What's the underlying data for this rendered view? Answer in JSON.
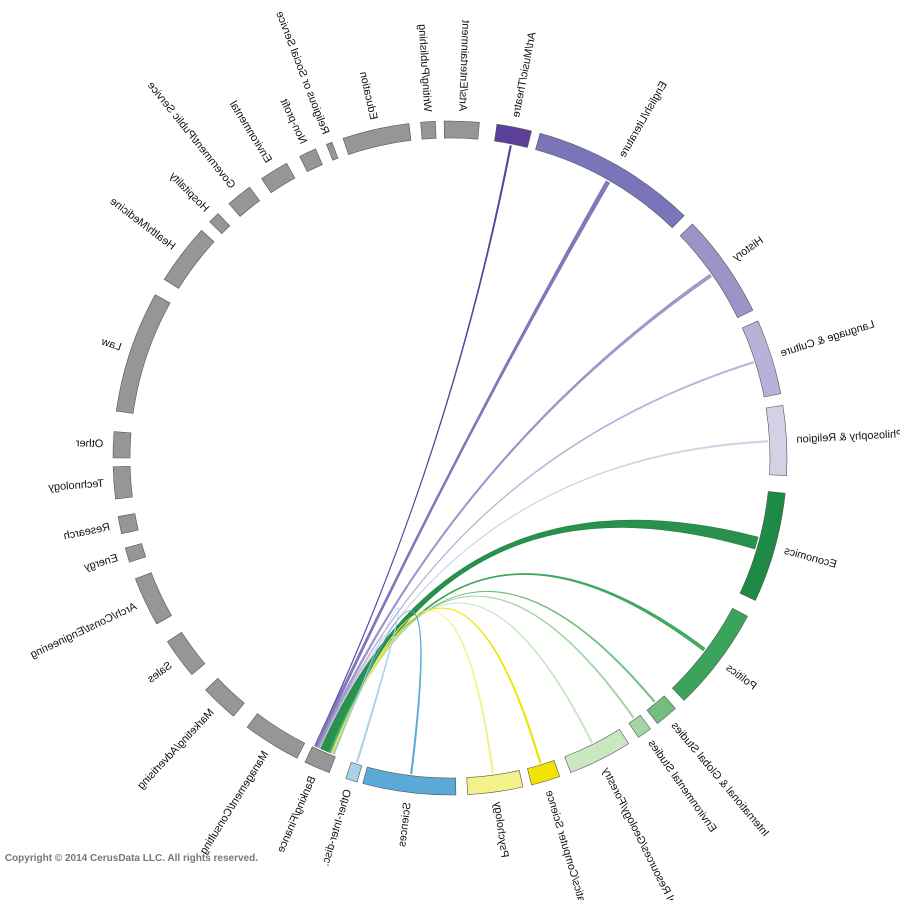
{
  "copyright": "Copyright © 2014 CerusData LLC.  All rights reserved.",
  "mirrored": true,
  "chart_data": {
    "type": "chord",
    "majors": [
      {
        "label": "Art/Music/Theatre",
        "color": "#5b3f98",
        "flow": 0.2
      },
      {
        "label": "English/Literature",
        "color": "#7a74b8",
        "flow": 1.3
      },
      {
        "label": "History",
        "color": "#9b94c7",
        "flow": 1.0
      },
      {
        "label": "Language & Culture",
        "color": "#b7b2d8",
        "flow": 0.4
      },
      {
        "label": "Philosophy & Religion",
        "color": "#d4d1e6",
        "flow": 0.3
      },
      {
        "label": "Economics",
        "color": "#1f8a45",
        "flow": 4.0
      },
      {
        "label": "Politics",
        "color": "#3aa55a",
        "flow": 1.0
      },
      {
        "label": "International & Global Studies",
        "color": "#72be7e",
        "flow": 0.3
      },
      {
        "label": "Environmental Studies",
        "color": "#a4d6a4",
        "flow": 0.2
      },
      {
        "label": "Natural Resources/Geology/Forestry",
        "color": "#c8e8c1",
        "flow": 0.2
      },
      {
        "label": "Mathematics/Computer Science",
        "color": "#f1e300",
        "flow": 0.5
      },
      {
        "label": "Psychology",
        "color": "#f4f08a",
        "flow": 0.3
      },
      {
        "label": "Sciences",
        "color": "#5aa9d6",
        "flow": 0.25
      },
      {
        "label": "Other-Inter-disc.",
        "color": "#a9d1ea",
        "flow": 0.15
      }
    ],
    "careers": [
      {
        "label": "Banking/Finance",
        "color": "#969696"
      },
      {
        "label": "Management/Consulting",
        "color": "#969696"
      },
      {
        "label": "Marketing/Advertising",
        "color": "#969696"
      },
      {
        "label": "Sales",
        "color": "#969696"
      },
      {
        "label": "Arch/Const/Engineering",
        "color": "#969696"
      },
      {
        "label": "Energy",
        "color": "#969696"
      },
      {
        "label": "Research",
        "color": "#969696"
      },
      {
        "label": "Technology",
        "color": "#969696"
      },
      {
        "label": "Other",
        "color": "#969696"
      },
      {
        "label": "Law",
        "color": "#969696"
      },
      {
        "label": "Health/Medicine",
        "color": "#969696"
      },
      {
        "label": "Hospitality",
        "color": "#969696"
      },
      {
        "label": "Government/Public Service",
        "color": "#969696"
      },
      {
        "label": "Environmental",
        "color": "#969696"
      },
      {
        "label": "Non-profit",
        "color": "#969696"
      },
      {
        "label": "Religious or Social Service",
        "color": "#969696"
      },
      {
        "label": "Education",
        "color": "#969696"
      },
      {
        "label": "Writing/Publishing",
        "color": "#969696"
      },
      {
        "label": "Arts/Entertainment",
        "color": "#969696"
      }
    ],
    "highlighted_career": "Banking/Finance"
  }
}
